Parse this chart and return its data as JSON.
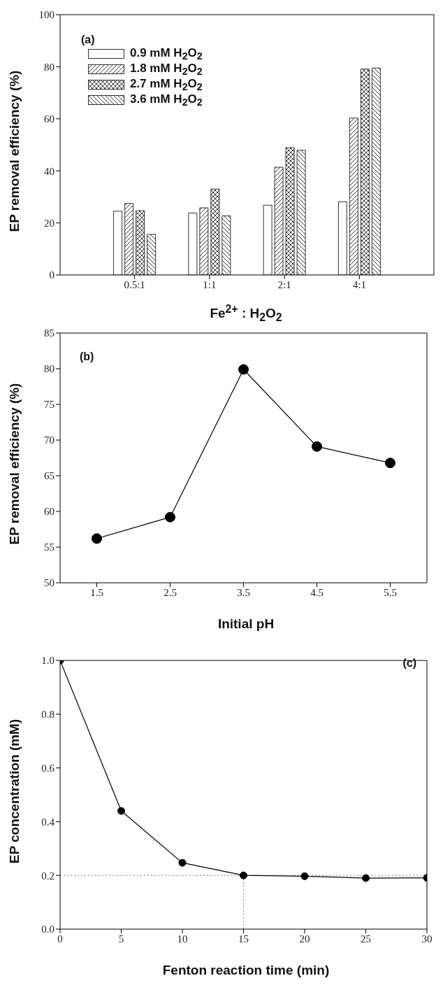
{
  "chart_data": [
    {
      "type": "bar",
      "xlabel": "Fe$^{2+}$ : H$_{2}$O$_{2}$",
      "ylabel": "EP removal efficiency (%)",
      "annotations": [
        "(a)"
      ],
      "categories": [
        "0.5:1",
        "1:1",
        "2:1",
        "4:1"
      ],
      "series": [
        {
          "name": "0.9 mM H$_{2}$O$_{2}$",
          "color": "#000000",
          "values": [
            24.5,
            23.8,
            26.8,
            28.1
          ]
        },
        {
          "name": "1.8 mM H$_{2}$O$_{2}$",
          "color": "#000000",
          "values": [
            27.5,
            25.8,
            41.4,
            60.3
          ]
        },
        {
          "name": "2.7 mM H$_{2}$O$_{2}$",
          "color": "#000000",
          "values": [
            24.7,
            33.0,
            48.9,
            79.1
          ]
        },
        {
          "name": "3.6 mM H$_{2}$O$_{2}$",
          "color": "#000000",
          "values": [
            15.6,
            22.7,
            47.9,
            79.5
          ]
        }
      ],
      "ylim": [
        0,
        100
      ],
      "yticks": [
        0,
        20,
        40,
        60,
        80,
        100
      ],
      "grid": false,
      "legend": "top left"
    },
    {
      "type": "line",
      "xlabel": "Initial pH",
      "ylabel": "EP removal efficiency (%)",
      "annotations": [
        "(b)"
      ],
      "x": [
        1.5,
        2.5,
        3.5,
        4.5,
        5.5
      ],
      "series": [
        {
          "color": "#000000",
          "values": [
            56.2,
            59.2,
            79.9,
            69.1,
            66.8
          ]
        }
      ],
      "xlim": [
        1,
        6
      ],
      "xticks": [
        1.5,
        2.5,
        3.5,
        4.5,
        5.5
      ],
      "ylim": [
        50,
        85
      ],
      "yticks": [
        50,
        55,
        60,
        65,
        70,
        75,
        80,
        85
      ],
      "grid": false,
      "marker": "circle",
      "line_style": "solid"
    },
    {
      "type": "line",
      "xlabel": "Fenton reaction time (min)",
      "ylabel": "EP concentration (mM)",
      "annotations": [
        "(c)"
      ],
      "x": [
        0,
        5,
        10,
        15,
        20,
        25,
        30
      ],
      "series": [
        {
          "color": "#000000",
          "values": [
            1.0,
            0.44,
            0.247,
            0.2,
            0.197,
            0.19,
            0.191
          ]
        }
      ],
      "xlim": [
        0,
        30
      ],
      "xticks": [
        0,
        5,
        10,
        15,
        20,
        25,
        30
      ],
      "ylim": [
        0,
        1
      ],
      "yticks": [
        {
          "value": 0,
          "label": "0.0"
        },
        0.2,
        0.4,
        0.6,
        0.8,
        {
          "value": 1,
          "label": "1.0"
        }
      ],
      "ref_lines": [
        {
          "axis": "y",
          "value": 0.2,
          "color": "#808080",
          "line_style": "dotted"
        },
        {
          "axis": "x",
          "value": 15,
          "color": "#808080",
          "line_style": "dotted"
        }
      ],
      "grid": false,
      "marker": "circle",
      "line_style": "solid"
    }
  ]
}
